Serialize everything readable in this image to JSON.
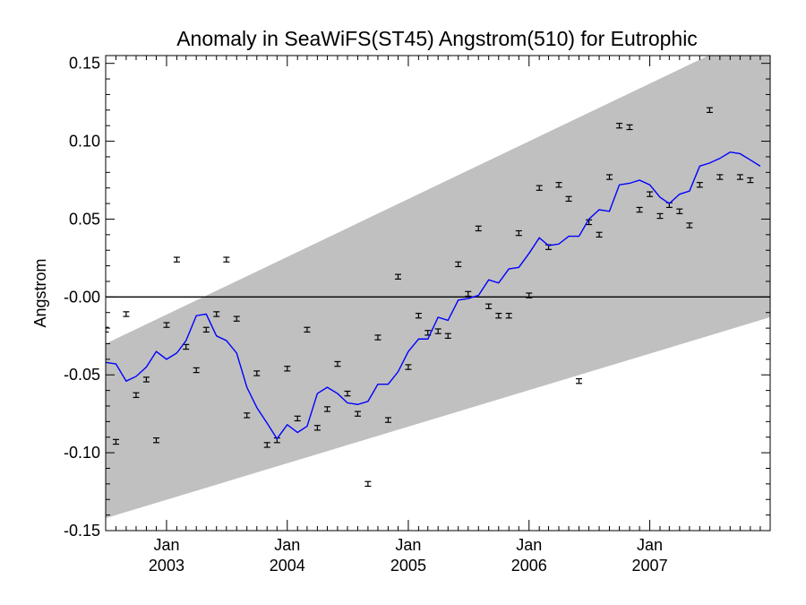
{
  "chart_data": {
    "type": "scatter",
    "title": "Anomaly in SeaWiFS(ST45) Angstrom(510) for Eutrophic",
    "xlabel": "",
    "ylabel": "Angstrom",
    "ylim": [
      -0.15,
      0.155
    ],
    "xlim": [
      "2002-07-01",
      "2007-12-31"
    ],
    "y_tick_labels": [
      "0.15",
      "0.10",
      "0.05",
      "-0.00",
      "-0.05",
      "-0.10",
      "-0.15"
    ],
    "y_tick_values": [
      0.15,
      0.1,
      0.05,
      0.0,
      -0.05,
      -0.1,
      -0.15
    ],
    "x_tick_labels": [
      {
        "month": "Jan",
        "year": "2003"
      },
      {
        "month": "Jan",
        "year": "2004"
      },
      {
        "month": "Jan",
        "year": "2005"
      },
      {
        "month": "Jan",
        "year": "2006"
      },
      {
        "month": "Jan",
        "year": "2007"
      }
    ],
    "x_tick_dates": [
      "2003-01-01",
      "2004-01-01",
      "2005-01-01",
      "2006-01-01",
      "2007-01-01"
    ],
    "grid": false,
    "zero_line": 0.0,
    "colors": {
      "band": "#c0c0c0",
      "smooth": "#0000ff",
      "points": "#000000",
      "frame": "#000000"
    },
    "band": {
      "upper": [
        {
          "x": "2002-07-01",
          "y": -0.03
        },
        {
          "x": "2007-12-31",
          "y": 0.174
        }
      ],
      "lower": [
        {
          "x": "2002-07-01",
          "y": -0.142
        },
        {
          "x": "2007-12-31",
          "y": -0.013
        }
      ]
    },
    "series": [
      {
        "type": "scatter_errorbar",
        "values": [
          {
            "x": "2002-07-01",
            "y": -0.021
          },
          {
            "x": "2002-08-01",
            "y": -0.093
          },
          {
            "x": "2002-09-01",
            "y": -0.011
          },
          {
            "x": "2002-10-01",
            "y": -0.063
          },
          {
            "x": "2002-11-01",
            "y": -0.053
          },
          {
            "x": "2002-12-01",
            "y": -0.092
          },
          {
            "x": "2003-01-01",
            "y": -0.018
          },
          {
            "x": "2003-02-01",
            "y": 0.024
          },
          {
            "x": "2003-03-01",
            "y": -0.032
          },
          {
            "x": "2003-04-01",
            "y": -0.047
          },
          {
            "x": "2003-05-01",
            "y": -0.021
          },
          {
            "x": "2003-06-01",
            "y": -0.011
          },
          {
            "x": "2003-07-01",
            "y": 0.024
          },
          {
            "x": "2003-08-01",
            "y": -0.014
          },
          {
            "x": "2003-09-01",
            "y": -0.076
          },
          {
            "x": "2003-10-01",
            "y": -0.049
          },
          {
            "x": "2003-11-01",
            "y": -0.095
          },
          {
            "x": "2003-12-01",
            "y": -0.092
          },
          {
            "x": "2004-01-01",
            "y": -0.046
          },
          {
            "x": "2004-02-01",
            "y": -0.078
          },
          {
            "x": "2004-03-01",
            "y": -0.021
          },
          {
            "x": "2004-04-01",
            "y": -0.084
          },
          {
            "x": "2004-05-01",
            "y": -0.072
          },
          {
            "x": "2004-06-01",
            "y": -0.043
          },
          {
            "x": "2004-07-01",
            "y": -0.062
          },
          {
            "x": "2004-08-01",
            "y": -0.075
          },
          {
            "x": "2004-09-01",
            "y": -0.12
          },
          {
            "x": "2004-10-01",
            "y": -0.026
          },
          {
            "x": "2004-11-01",
            "y": -0.079
          },
          {
            "x": "2004-12-01",
            "y": 0.013
          },
          {
            "x": "2005-01-01",
            "y": -0.045
          },
          {
            "x": "2005-02-01",
            "y": -0.012
          },
          {
            "x": "2005-03-01",
            "y": -0.023
          },
          {
            "x": "2005-04-01",
            "y": -0.022
          },
          {
            "x": "2005-05-01",
            "y": -0.025
          },
          {
            "x": "2005-06-01",
            "y": 0.021
          },
          {
            "x": "2005-07-01",
            "y": 0.002
          },
          {
            "x": "2005-08-01",
            "y": 0.044
          },
          {
            "x": "2005-09-01",
            "y": -0.006
          },
          {
            "x": "2005-10-01",
            "y": -0.012
          },
          {
            "x": "2005-11-01",
            "y": -0.012
          },
          {
            "x": "2005-12-01",
            "y": 0.041
          },
          {
            "x": "2006-01-01",
            "y": 0.001
          },
          {
            "x": "2006-02-01",
            "y": 0.07
          },
          {
            "x": "2006-03-01",
            "y": 0.032
          },
          {
            "x": "2006-04-01",
            "y": 0.072
          },
          {
            "x": "2006-05-01",
            "y": 0.063
          },
          {
            "x": "2006-06-01",
            "y": -0.054
          },
          {
            "x": "2006-07-01",
            "y": 0.048
          },
          {
            "x": "2006-08-01",
            "y": 0.04
          },
          {
            "x": "2006-09-01",
            "y": 0.077
          },
          {
            "x": "2006-10-01",
            "y": 0.11
          },
          {
            "x": "2006-11-01",
            "y": 0.109
          },
          {
            "x": "2006-12-01",
            "y": 0.056
          },
          {
            "x": "2007-01-01",
            "y": 0.066
          },
          {
            "x": "2007-02-01",
            "y": 0.052
          },
          {
            "x": "2007-03-01",
            "y": 0.059
          },
          {
            "x": "2007-04-01",
            "y": 0.055
          },
          {
            "x": "2007-05-01",
            "y": 0.046
          },
          {
            "x": "2007-06-01",
            "y": 0.072
          },
          {
            "x": "2007-07-01",
            "y": 0.12
          },
          {
            "x": "2007-08-01",
            "y": 0.077
          },
          {
            "x": "2007-10-01",
            "y": 0.077
          },
          {
            "x": "2007-11-01",
            "y": 0.075
          }
        ],
        "error": 0.0015
      },
      {
        "type": "line",
        "values": [
          {
            "x": "2002-07-01",
            "y": -0.042
          },
          {
            "x": "2002-08-01",
            "y": -0.043
          },
          {
            "x": "2002-09-01",
            "y": -0.054
          },
          {
            "x": "2002-10-01",
            "y": -0.051
          },
          {
            "x": "2002-11-01",
            "y": -0.045
          },
          {
            "x": "2002-12-01",
            "y": -0.035
          },
          {
            "x": "2003-01-01",
            "y": -0.04
          },
          {
            "x": "2003-02-01",
            "y": -0.036
          },
          {
            "x": "2003-03-01",
            "y": -0.028
          },
          {
            "x": "2003-04-01",
            "y": -0.012
          },
          {
            "x": "2003-05-01",
            "y": -0.011
          },
          {
            "x": "2003-06-01",
            "y": -0.025
          },
          {
            "x": "2003-07-01",
            "y": -0.028
          },
          {
            "x": "2003-08-01",
            "y": -0.036
          },
          {
            "x": "2003-09-01",
            "y": -0.058
          },
          {
            "x": "2003-10-01",
            "y": -0.071
          },
          {
            "x": "2003-11-01",
            "y": -0.081
          },
          {
            "x": "2003-12-01",
            "y": -0.091
          },
          {
            "x": "2004-01-01",
            "y": -0.082
          },
          {
            "x": "2004-02-01",
            "y": -0.087
          },
          {
            "x": "2004-03-01",
            "y": -0.083
          },
          {
            "x": "2004-04-01",
            "y": -0.062
          },
          {
            "x": "2004-05-01",
            "y": -0.058
          },
          {
            "x": "2004-06-01",
            "y": -0.062
          },
          {
            "x": "2004-07-01",
            "y": -0.068
          },
          {
            "x": "2004-08-01",
            "y": -0.069
          },
          {
            "x": "2004-09-01",
            "y": -0.067
          },
          {
            "x": "2004-10-01",
            "y": -0.056
          },
          {
            "x": "2004-11-01",
            "y": -0.056
          },
          {
            "x": "2004-12-01",
            "y": -0.048
          },
          {
            "x": "2005-01-01",
            "y": -0.035
          },
          {
            "x": "2005-02-01",
            "y": -0.027
          },
          {
            "x": "2005-03-01",
            "y": -0.027
          },
          {
            "x": "2005-04-01",
            "y": -0.013
          },
          {
            "x": "2005-05-01",
            "y": -0.015
          },
          {
            "x": "2005-06-01",
            "y": -0.002
          },
          {
            "x": "2005-07-01",
            "y": -0.001
          },
          {
            "x": "2005-08-01",
            "y": 0.001
          },
          {
            "x": "2005-09-01",
            "y": 0.011
          },
          {
            "x": "2005-10-01",
            "y": 0.009
          },
          {
            "x": "2005-11-01",
            "y": 0.018
          },
          {
            "x": "2005-12-01",
            "y": 0.019
          },
          {
            "x": "2006-01-01",
            "y": 0.028
          },
          {
            "x": "2006-02-01",
            "y": 0.038
          },
          {
            "x": "2006-03-01",
            "y": 0.033
          },
          {
            "x": "2006-04-01",
            "y": 0.034
          },
          {
            "x": "2006-05-01",
            "y": 0.039
          },
          {
            "x": "2006-06-01",
            "y": 0.039
          },
          {
            "x": "2006-07-01",
            "y": 0.05
          },
          {
            "x": "2006-08-01",
            "y": 0.056
          },
          {
            "x": "2006-09-01",
            "y": 0.055
          },
          {
            "x": "2006-10-01",
            "y": 0.072
          },
          {
            "x": "2006-11-01",
            "y": 0.073
          },
          {
            "x": "2006-12-01",
            "y": 0.075
          },
          {
            "x": "2007-01-01",
            "y": 0.072
          },
          {
            "x": "2007-02-01",
            "y": 0.064
          },
          {
            "x": "2007-03-01",
            "y": 0.06
          },
          {
            "x": "2007-04-01",
            "y": 0.066
          },
          {
            "x": "2007-05-01",
            "y": 0.068
          },
          {
            "x": "2007-06-01",
            "y": 0.084
          },
          {
            "x": "2007-07-01",
            "y": 0.086
          },
          {
            "x": "2007-08-01",
            "y": 0.089
          },
          {
            "x": "2007-09-01",
            "y": 0.093
          },
          {
            "x": "2007-10-01",
            "y": 0.092
          },
          {
            "x": "2007-11-01",
            "y": 0.088
          },
          {
            "x": "2007-12-01",
            "y": 0.084
          }
        ]
      }
    ]
  }
}
